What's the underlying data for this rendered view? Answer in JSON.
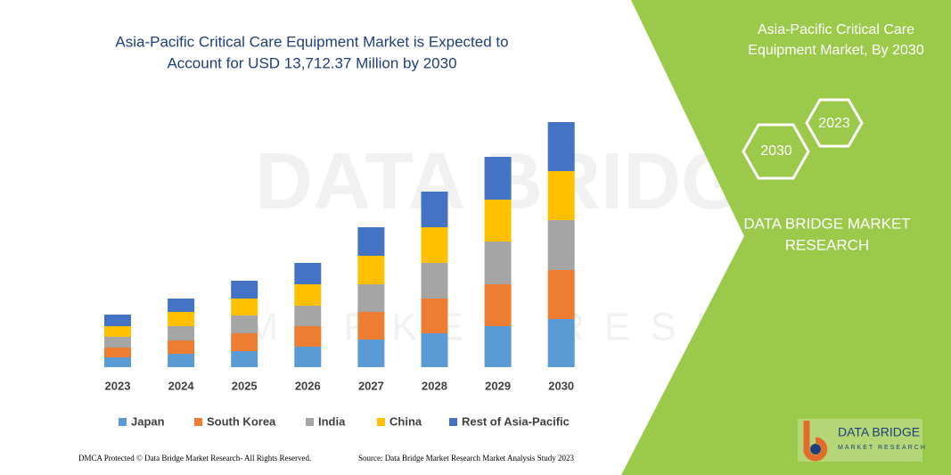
{
  "chart_data": {
    "type": "stacked-bar",
    "title": "Asia-Pacific Critical Care Equipment Market is Expected to",
    "subtitle": "Account for USD 13,712.37 Million by 2030",
    "categories": [
      "2023",
      "2024",
      "2025",
      "2026",
      "2027",
      "2028",
      "2029",
      "2030"
    ],
    "series": [
      {
        "name": "Japan",
        "color": "#5b9bd5",
        "values": [
          11,
          15,
          18,
          23,
          31,
          38,
          46,
          54
        ]
      },
      {
        "name": "South Korea",
        "color": "#ed7d31",
        "values": [
          11,
          15,
          20,
          23,
          31,
          39,
          47,
          55
        ]
      },
      {
        "name": "India",
        "color": "#a5a5a5",
        "values": [
          12,
          16,
          20,
          23,
          31,
          40,
          48,
          56
        ]
      },
      {
        "name": "China",
        "color": "#ffc000",
        "values": [
          12,
          16,
          19,
          24,
          32,
          40,
          47,
          55
        ]
      },
      {
        "name": "Rest of Asia-Pacific",
        "color": "#4472c4",
        "values": [
          13,
          15,
          20,
          24,
          32,
          40,
          48,
          55
        ]
      }
    ]
  },
  "watermark": {
    "line1": "DATA BRIDGE",
    "line2": "MARKET RESEARCH"
  },
  "panel": {
    "title_line1": "Asia-Pacific Critical Care",
    "title_line2": "Equipment Market, By 2030",
    "hex_front": "2030",
    "hex_back": "2023",
    "brand_line1": "DATA BRIDGE MARKET",
    "brand_line2": "RESEARCH",
    "logo_line1": "DATA BRIDGE",
    "logo_line2": "MARKET RESEARCH"
  },
  "footer": {
    "left": "DMCA Protected © Data Bridge Market Research- All Rights Reserved.",
    "right": "Source: Data Bridge Market Research Market Analysis Study 2023"
  }
}
